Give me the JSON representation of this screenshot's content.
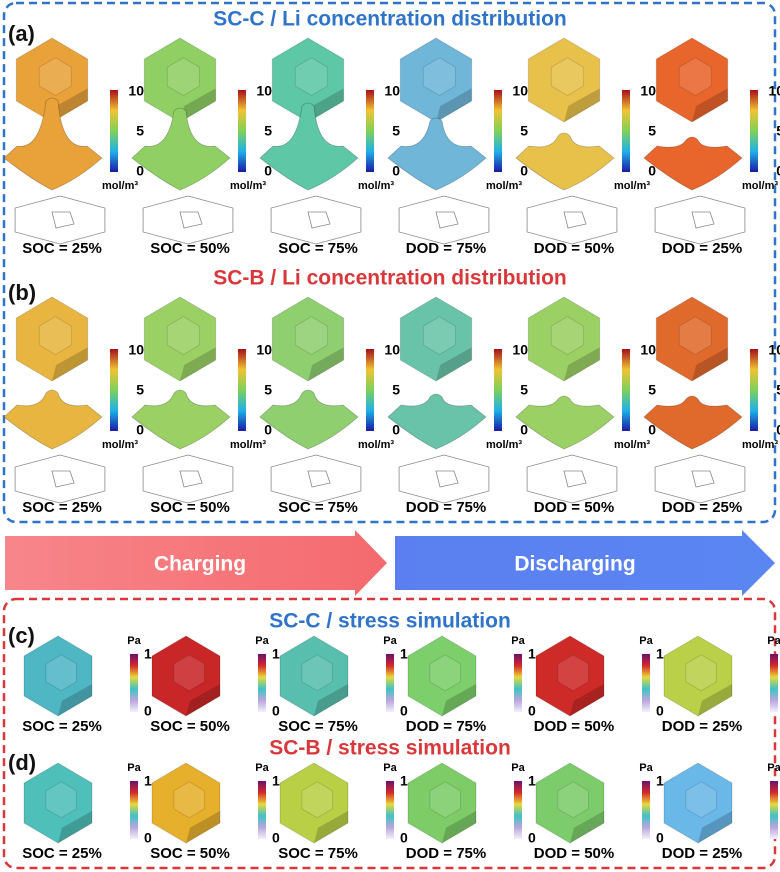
{
  "panels": [
    {
      "label": "(a)",
      "title": "SC-C / Li concentration distribution",
      "colorbar": {
        "ticks": [
          "10",
          "5",
          "0"
        ],
        "unit": "mol/m³"
      },
      "states": [
        "SOC = 25%",
        "SOC = 50%",
        "SOC = 75%",
        "DOD = 75%",
        "DOD = 50%",
        "DOD = 25%"
      ]
    },
    {
      "label": "(b)",
      "title": "SC-B / Li concentration distribution",
      "colorbar": {
        "ticks": [
          "10",
          "5",
          "0"
        ],
        "unit": "mol/m³"
      },
      "states": [
        "SOC = 25%",
        "SOC = 50%",
        "SOC = 75%",
        "DOD = 75%",
        "DOD = 50%",
        "DOD = 25%"
      ]
    },
    {
      "label": "(c)",
      "title": "SC-C / stress simulation",
      "colorbar": {
        "ticks": [
          "1",
          "0"
        ],
        "unit": "Pa"
      },
      "states": [
        "SOC = 25%",
        "SOC = 50%",
        "SOC = 75%",
        "DOD = 75%",
        "DOD = 50%",
        "DOD = 25%"
      ]
    },
    {
      "label": "(d)",
      "title": "SC-B / stress simulation",
      "colorbar": {
        "ticks": [
          "1",
          "0"
        ],
        "unit": "Pa"
      },
      "states": [
        "SOC = 25%",
        "SOC = 50%",
        "SOC = 75%",
        "DOD = 75%",
        "DOD = 50%",
        "DOD = 25%"
      ]
    }
  ],
  "arrows": {
    "charging": "Charging",
    "discharging": "Discharging"
  }
}
